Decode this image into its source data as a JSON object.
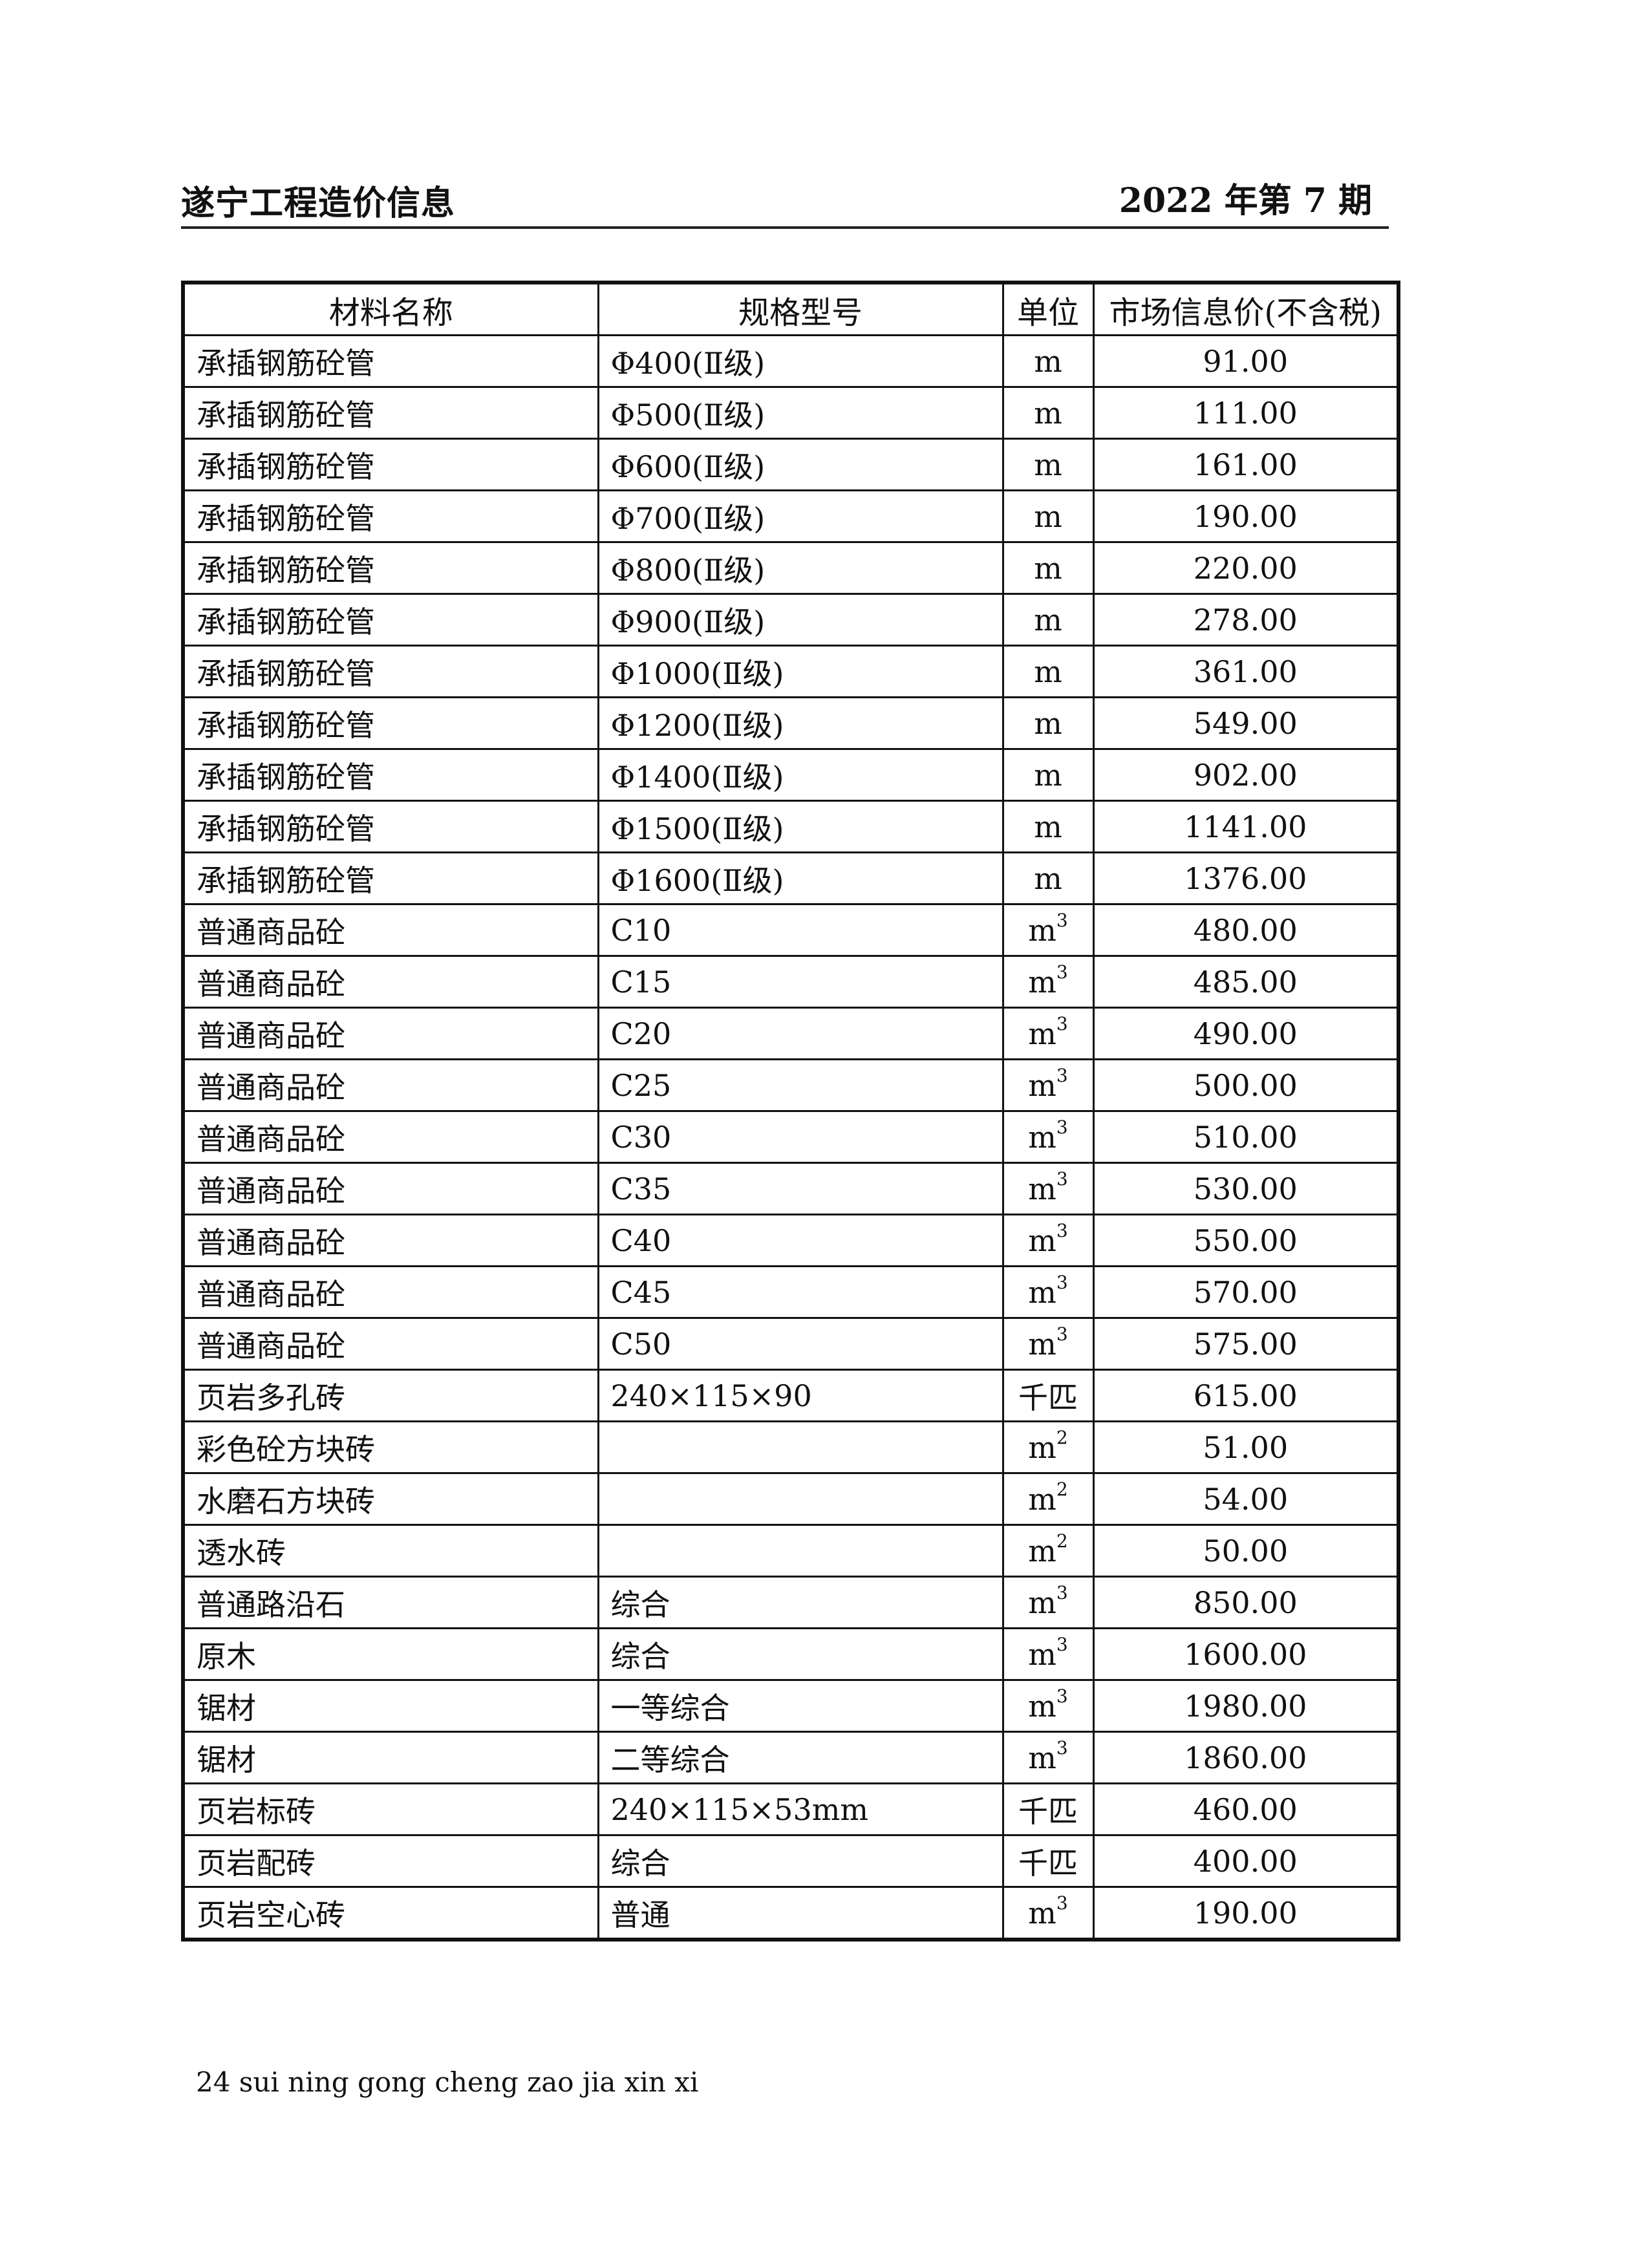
{
  "header": {
    "title": "遂宁工程造价信息",
    "issue": "2022 年第 7 期"
  },
  "table": {
    "columns": [
      "材料名称",
      "规格型号",
      "单位",
      "市场信息价(不含税)"
    ],
    "rows": [
      {
        "name": "承插钢筋砼管",
        "spec": "Φ400(Ⅱ级)",
        "unit": "m",
        "unit_sup": "",
        "price": "91.00"
      },
      {
        "name": "承插钢筋砼管",
        "spec": "Φ500(Ⅱ级)",
        "unit": "m",
        "unit_sup": "",
        "price": "111.00"
      },
      {
        "name": "承插钢筋砼管",
        "spec": "Φ600(Ⅱ级)",
        "unit": "m",
        "unit_sup": "",
        "price": "161.00"
      },
      {
        "name": "承插钢筋砼管",
        "spec": "Φ700(Ⅱ级)",
        "unit": "m",
        "unit_sup": "",
        "price": "190.00"
      },
      {
        "name": "承插钢筋砼管",
        "spec": "Φ800(Ⅱ级)",
        "unit": "m",
        "unit_sup": "",
        "price": "220.00"
      },
      {
        "name": "承插钢筋砼管",
        "spec": "Φ900(Ⅱ级)",
        "unit": "m",
        "unit_sup": "",
        "price": "278.00"
      },
      {
        "name": "承插钢筋砼管",
        "spec": "Φ1000(Ⅱ级)",
        "unit": "m",
        "unit_sup": "",
        "price": "361.00"
      },
      {
        "name": "承插钢筋砼管",
        "spec": "Φ1200(Ⅱ级)",
        "unit": "m",
        "unit_sup": "",
        "price": "549.00"
      },
      {
        "name": "承插钢筋砼管",
        "spec": "Φ1400(Ⅱ级)",
        "unit": "m",
        "unit_sup": "",
        "price": "902.00"
      },
      {
        "name": "承插钢筋砼管",
        "spec": "Φ1500(Ⅱ级)",
        "unit": "m",
        "unit_sup": "",
        "price": "1141.00"
      },
      {
        "name": "承插钢筋砼管",
        "spec": "Φ1600(Ⅱ级)",
        "unit": "m",
        "unit_sup": "",
        "price": "1376.00"
      },
      {
        "name": "普通商品砼",
        "spec": "C10",
        "unit": "m",
        "unit_sup": "3",
        "price": "480.00"
      },
      {
        "name": "普通商品砼",
        "spec": "C15",
        "unit": "m",
        "unit_sup": "3",
        "price": "485.00"
      },
      {
        "name": "普通商品砼",
        "spec": "C20",
        "unit": "m",
        "unit_sup": "3",
        "price": "490.00"
      },
      {
        "name": "普通商品砼",
        "spec": "C25",
        "unit": "m",
        "unit_sup": "3",
        "price": "500.00"
      },
      {
        "name": "普通商品砼",
        "spec": "C30",
        "unit": "m",
        "unit_sup": "3",
        "price": "510.00"
      },
      {
        "name": "普通商品砼",
        "spec": "C35",
        "unit": "m",
        "unit_sup": "3",
        "price": "530.00"
      },
      {
        "name": "普通商品砼",
        "spec": "C40",
        "unit": "m",
        "unit_sup": "3",
        "price": "550.00"
      },
      {
        "name": "普通商品砼",
        "spec": "C45",
        "unit": "m",
        "unit_sup": "3",
        "price": "570.00"
      },
      {
        "name": "普通商品砼",
        "spec": "C50",
        "unit": "m",
        "unit_sup": "3",
        "price": "575.00"
      },
      {
        "name": "页岩多孔砖",
        "spec": "240×115×90",
        "unit": "千匹",
        "unit_sup": "",
        "price": "615.00"
      },
      {
        "name": "彩色砼方块砖",
        "spec": "",
        "unit": "m",
        "unit_sup": "2",
        "price": "51.00"
      },
      {
        "name": "水磨石方块砖",
        "spec": "",
        "unit": "m",
        "unit_sup": "2",
        "price": "54.00"
      },
      {
        "name": "透水砖",
        "spec": "",
        "unit": "m",
        "unit_sup": "2",
        "price": "50.00"
      },
      {
        "name": "普通路沿石",
        "spec": "综合",
        "unit": "m",
        "unit_sup": "3",
        "price": "850.00"
      },
      {
        "name": "原木",
        "spec": "综合",
        "unit": "m",
        "unit_sup": "3",
        "price": "1600.00"
      },
      {
        "name": "锯材",
        "spec": "一等综合",
        "unit": "m",
        "unit_sup": "3",
        "price": "1980.00"
      },
      {
        "name": "锯材",
        "spec": "二等综合",
        "unit": "m",
        "unit_sup": "3",
        "price": "1860.00"
      },
      {
        "name": "页岩标砖",
        "spec": "240×115×53mm",
        "unit": "千匹",
        "unit_sup": "",
        "price": "460.00"
      },
      {
        "name": "页岩配砖",
        "spec": "综合",
        "unit": "千匹",
        "unit_sup": "",
        "price": "400.00"
      },
      {
        "name": "页岩空心砖",
        "spec": "普通",
        "unit": "m",
        "unit_sup": "3",
        "price": "190.00"
      }
    ]
  },
  "footer": {
    "text": "24 sui ning gong cheng zao jia xin xi"
  }
}
